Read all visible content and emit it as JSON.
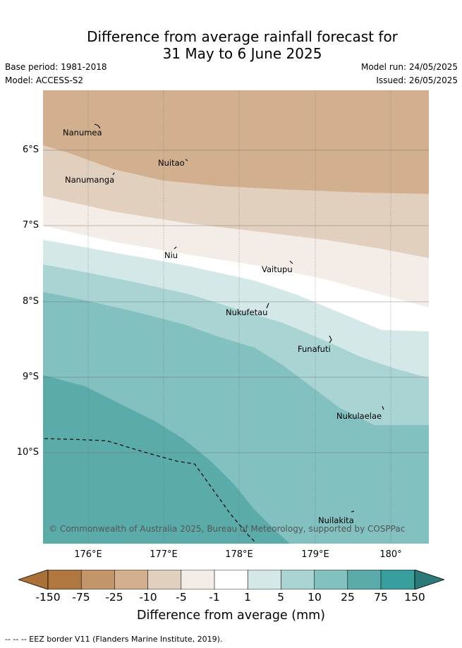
{
  "title_line1": "Difference from average rainfall forecast for",
  "title_line2": "31 May to 6 June 2025",
  "base_period": "Base period: 1981-2018",
  "model": "Model: ACCESS-S2",
  "model_run": "Model run: 24/05/2025",
  "issued": "Issued: 26/05/2025",
  "copyright": "© Commonwealth of Australia 2025, Bureau of Meteorology, supported by COSPPac",
  "lat_labels": [
    "6°S",
    "7°S",
    "8°S",
    "9°S",
    "10°S"
  ],
  "lon_labels": [
    "176°E",
    "177°E",
    "178°E",
    "179°E",
    "180°"
  ],
  "places": [
    {
      "name": "Nanumea",
      "lon": 176.05,
      "lat": -5.69
    },
    {
      "name": "Nuitao",
      "lon": 177.34,
      "lat": -6.11
    },
    {
      "name": "Nanumanga",
      "lon": 176.33,
      "lat": -6.29
    },
    {
      "name": "Niu",
      "lon": 177.16,
      "lat": -7.3
    },
    {
      "name": "Vaitupu",
      "lon": 178.68,
      "lat": -7.48
    },
    {
      "name": "Nukufetau",
      "lon": 178.38,
      "lat": -8.03
    },
    {
      "name": "Funafuti",
      "lon": 179.2,
      "lat": -8.52
    },
    {
      "name": "Nukulaelae",
      "lon": 179.85,
      "lat": -9.38
    },
    {
      "name": "Nuilakita",
      "lon": 179.5,
      "lat": -10.79
    }
  ],
  "colorbar": {
    "title": "Difference from average (mm)",
    "ticks": [
      "-150",
      "-75",
      "-25",
      "-10",
      "-5",
      "-1",
      "1",
      "5",
      "10",
      "25",
      "75",
      "150"
    ],
    "colors": [
      "#a97038",
      "#b07840",
      "#c2966a",
      "#d2b08f",
      "#e2d0bf",
      "#f4ece7",
      "#ffffff",
      "#d4e8e7",
      "#aad4d3",
      "#82c1bf",
      "#5babaa",
      "#389f9c",
      "#2b7a79"
    ]
  },
  "legend_text": "-- -- -- EEZ border V11 (Flanders Marine Institute, 2019)."
}
